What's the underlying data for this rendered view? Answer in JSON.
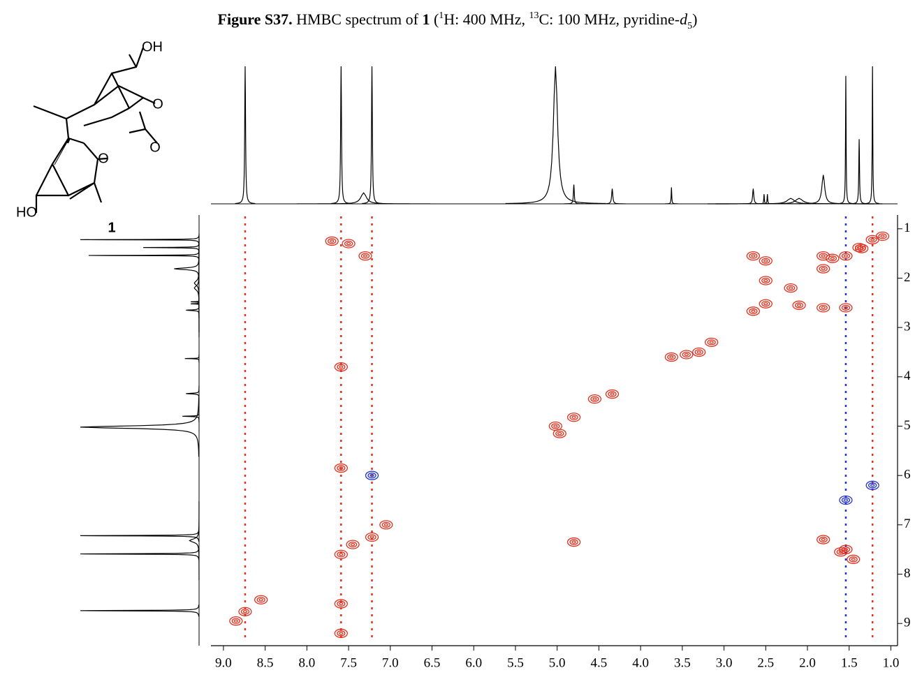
{
  "chart_data": {
    "type": "nmr-2d",
    "title": [
      "Figure S37.",
      " HMBC spectrum of ",
      "1",
      " (",
      "1",
      "H: 400 MHz, ",
      "13",
      "C: 100 MHz, pyridine-",
      "d",
      "5",
      ")"
    ],
    "compound_label": "1",
    "atom_labels": [
      "OH",
      "O",
      "O",
      "O",
      "HO"
    ],
    "xlim": [
      9.15,
      0.92
    ],
    "ylim": [
      0.72,
      9.45
    ],
    "xticks": [
      {
        "value": 9,
        "label": "9.0"
      },
      {
        "value": 8.5,
        "label": "8.5"
      },
      {
        "value": 8,
        "label": "8.0"
      },
      {
        "value": 7.5,
        "label": "7.5"
      },
      {
        "value": 7,
        "label": "7.0"
      },
      {
        "value": 6.5,
        "label": "6.5"
      },
      {
        "value": 6,
        "label": "6.0"
      },
      {
        "value": 5.5,
        "label": "5.5"
      },
      {
        "value": 5,
        "label": "5.0"
      },
      {
        "value": 4.5,
        "label": "4.5"
      },
      {
        "value": 4,
        "label": "4.0"
      },
      {
        "value": 3.5,
        "label": "3.5"
      },
      {
        "value": 3,
        "label": "3.0"
      },
      {
        "value": 2.5,
        "label": "2.5"
      },
      {
        "value": 2,
        "label": "2.0"
      },
      {
        "value": 1.5,
        "label": "1.5"
      },
      {
        "value": 1,
        "label": "1.0"
      }
    ],
    "yticks": [
      1,
      2,
      3,
      4,
      5,
      6,
      7,
      8,
      9
    ],
    "spectrum_1d": {
      "color": "#000000",
      "shifts": [
        8.74,
        7.59,
        7.32,
        7.22,
        5.02,
        4.8,
        4.34,
        3.63,
        2.65,
        2.52,
        2.48,
        2.2,
        2.1,
        1.81,
        1.54,
        1.38,
        1.22
      ],
      "heights": [
        100,
        100,
        8,
        100,
        100,
        14,
        11,
        12,
        11,
        7,
        7,
        4,
        4,
        21,
        93,
        47,
        100
      ],
      "widths": [
        0.006,
        0.006,
        0.04,
        0.006,
        0.03,
        0.006,
        0.008,
        0.004,
        0.008,
        0.004,
        0.004,
        0.05,
        0.05,
        0.02,
        0.004,
        0.005,
        0.004
      ]
    },
    "streaks": {
      "x": [
        8.74,
        7.59,
        7.22,
        1.54,
        1.22
      ],
      "colors": [
        "#e0301e",
        "#e0301e",
        "#e0301e",
        "#2233cc",
        "#e0301e"
      ]
    },
    "series": [
      {
        "name": "positive",
        "color": "#e0301e",
        "x": [
          8.74,
          8.85,
          8.55,
          7.59,
          7.45,
          7.22,
          7.05,
          7.59,
          7.3,
          5.02,
          4.97,
          4.8,
          4.34,
          4.55,
          3.63,
          3.45,
          3.3,
          3.15,
          2.65,
          2.5,
          2.65,
          2.5,
          2.5,
          2.1,
          1.81,
          1.54,
          1.81,
          1.54,
          1.38,
          1.22,
          1.81,
          1.54,
          1.81,
          1.6,
          1.45,
          4.8,
          7.59,
          7.59,
          7.59,
          7.7,
          7.5,
          1.35,
          1.1,
          2.2,
          1.7
        ],
        "y": [
          8.76,
          8.95,
          8.52,
          7.6,
          7.4,
          7.25,
          7.0,
          3.8,
          1.55,
          5.0,
          5.15,
          4.82,
          4.35,
          4.45,
          3.6,
          3.55,
          3.5,
          3.3,
          2.67,
          2.52,
          1.55,
          2.05,
          1.65,
          2.55,
          1.81,
          1.55,
          2.6,
          2.6,
          1.38,
          1.22,
          7.3,
          7.5,
          1.55,
          7.55,
          7.7,
          7.35,
          5.85,
          9.2,
          8.6,
          1.25,
          1.3,
          1.4,
          1.15,
          2.2,
          1.6
        ]
      },
      {
        "name": "negative",
        "color": "#2233cc",
        "x": [
          7.22,
          1.54,
          1.22
        ],
        "y": [
          6.0,
          6.5,
          6.2
        ]
      }
    ]
  }
}
